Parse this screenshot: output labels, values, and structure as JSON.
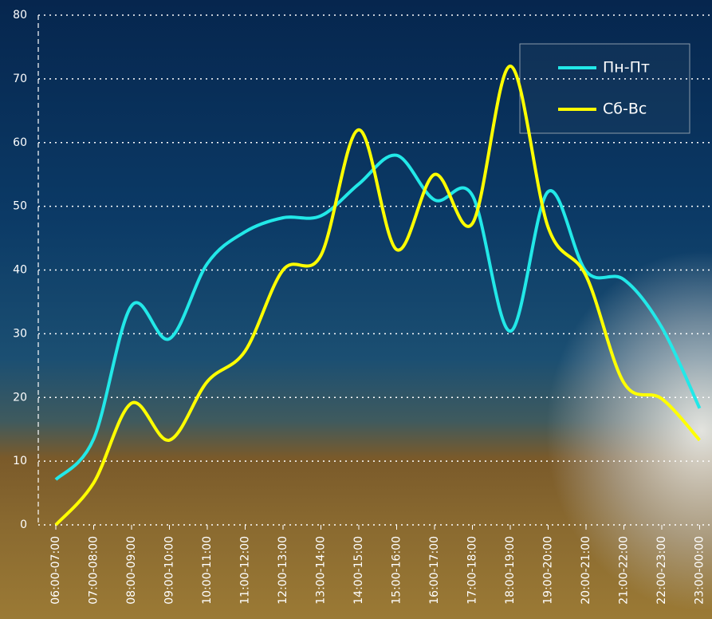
{
  "chart_data": {
    "type": "line",
    "categories": [
      "06:00-07:00",
      "07:00-08:00",
      "08:00-09:00",
      "09:00-10:00",
      "10:00-11:00",
      "11:00-12:00",
      "12:00-13:00",
      "13:00-14:00",
      "14:00-15:00",
      "15:00-16:00",
      "16:00-17:00",
      "17:00-18:00",
      "18:00-19:00",
      "19:00-20:00",
      "20:00-21:00",
      "21:00-22:00",
      "22:00-23:00",
      "23:00-00:00"
    ],
    "series": [
      {
        "name": "Пн-Пт",
        "color": "#22e8e8",
        "values": [
          7.1,
          13.5,
          34.4,
          29.2,
          41,
          46,
          48.2,
          48.5,
          53.5,
          58,
          51,
          51.7,
          30.4,
          52.3,
          39.8,
          38.5,
          31,
          18.3
        ]
      },
      {
        "name": "Сб-Вс",
        "color": "#ffff00",
        "values": [
          0,
          6.6,
          19.1,
          13.3,
          22.5,
          27.3,
          40,
          42.3,
          62,
          43.2,
          55,
          47.3,
          72,
          46.7,
          39.1,
          22.3,
          19.8,
          13.3
        ]
      }
    ],
    "ylim": [
      0,
      80
    ],
    "yticks": [
      0,
      10,
      20,
      30,
      40,
      50,
      60,
      70,
      80
    ],
    "grid": true,
    "legend": "upper right"
  }
}
